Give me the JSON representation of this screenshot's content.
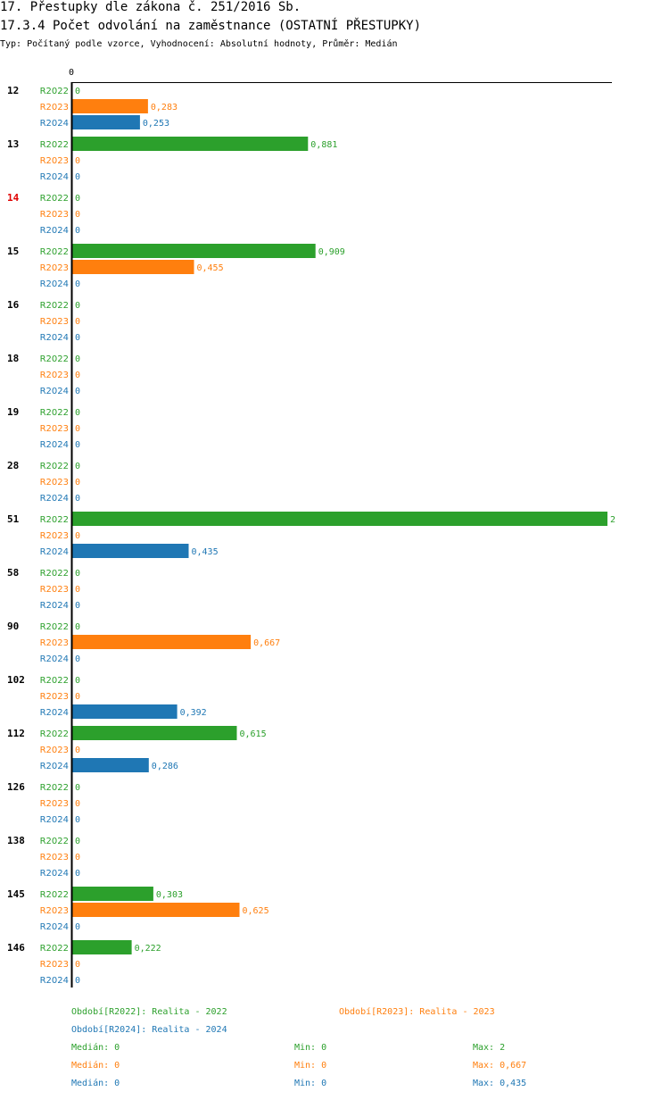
{
  "header": {
    "title": "17. Přestupky dle zákona č. 251/2016 Sb.",
    "subtitle": "17.3.4 Počet odvolání na zaměstnance (OSTATNÍ PŘESTUPKY)",
    "meta": "Typ: Počítaný podle vzorce, Vyhodnocení: Absolutní hodnoty, Průměr: Medián"
  },
  "colors": {
    "R2022": "#2ca02c",
    "R2023": "#ff7f0e",
    "R2024": "#1f77b4",
    "highlight": "#e00000"
  },
  "chart_data": {
    "type": "bar",
    "orientation": "horizontal",
    "xlim": [
      0,
      2
    ],
    "x_tick_label": "0",
    "series_labels": [
      "R2022",
      "R2023",
      "R2024"
    ],
    "groups": [
      {
        "category": "12",
        "highlight": false,
        "values": [
          0,
          0.283,
          0.253
        ],
        "labels": [
          "0",
          "0,283",
          "0,253"
        ]
      },
      {
        "category": "13",
        "highlight": false,
        "values": [
          0.881,
          0,
          0
        ],
        "labels": [
          "0,881",
          "0",
          "0"
        ]
      },
      {
        "category": "14",
        "highlight": true,
        "values": [
          0,
          0,
          0
        ],
        "labels": [
          "0",
          "0",
          "0"
        ]
      },
      {
        "category": "15",
        "highlight": false,
        "values": [
          0.909,
          0.455,
          0
        ],
        "labels": [
          "0,909",
          "0,455",
          "0"
        ]
      },
      {
        "category": "16",
        "highlight": false,
        "values": [
          0,
          0,
          0
        ],
        "labels": [
          "0",
          "0",
          "0"
        ]
      },
      {
        "category": "18",
        "highlight": false,
        "values": [
          0,
          0,
          0
        ],
        "labels": [
          "0",
          "0",
          "0"
        ]
      },
      {
        "category": "19",
        "highlight": false,
        "values": [
          0,
          0,
          0
        ],
        "labels": [
          "0",
          "0",
          "0"
        ]
      },
      {
        "category": "28",
        "highlight": false,
        "values": [
          0,
          0,
          0
        ],
        "labels": [
          "0",
          "0",
          "0"
        ]
      },
      {
        "category": "51",
        "highlight": false,
        "values": [
          2,
          0,
          0.435
        ],
        "labels": [
          "2",
          "0",
          "0,435"
        ]
      },
      {
        "category": "58",
        "highlight": false,
        "values": [
          0,
          0,
          0
        ],
        "labels": [
          "0",
          "0",
          "0"
        ]
      },
      {
        "category": "90",
        "highlight": false,
        "values": [
          0,
          0.667,
          0
        ],
        "labels": [
          "0",
          "0,667",
          "0"
        ]
      },
      {
        "category": "102",
        "highlight": false,
        "values": [
          0,
          0,
          0.392
        ],
        "labels": [
          "0",
          "0",
          "0,392"
        ]
      },
      {
        "category": "112",
        "highlight": false,
        "values": [
          0.615,
          0,
          0.286
        ],
        "labels": [
          "0,615",
          "0",
          "0,286"
        ]
      },
      {
        "category": "126",
        "highlight": false,
        "values": [
          0,
          0,
          0
        ],
        "labels": [
          "0",
          "0",
          "0"
        ]
      },
      {
        "category": "138",
        "highlight": false,
        "values": [
          0,
          0,
          0
        ],
        "labels": [
          "0",
          "0",
          "0"
        ]
      },
      {
        "category": "145",
        "highlight": false,
        "values": [
          0.303,
          0.625,
          0
        ],
        "labels": [
          "0,303",
          "0,625",
          "0"
        ]
      },
      {
        "category": "146",
        "highlight": false,
        "values": [
          0.222,
          0,
          0
        ],
        "labels": [
          "0,222",
          "0",
          "0"
        ]
      }
    ]
  },
  "legend": {
    "R2022": "Období[R2022]: Realita - 2022",
    "R2023": "Období[R2023]: Realita - 2023",
    "R2024": "Období[R2024]: Realita - 2024"
  },
  "stats": [
    {
      "series": "R2022",
      "median": "Medián: 0",
      "min": "Min: 0",
      "max": "Max: 2"
    },
    {
      "series": "R2023",
      "median": "Medián: 0",
      "min": "Min: 0",
      "max": "Max: 0,667"
    },
    {
      "series": "R2024",
      "median": "Medián: 0",
      "min": "Min: 0",
      "max": "Max: 0,435"
    }
  ]
}
